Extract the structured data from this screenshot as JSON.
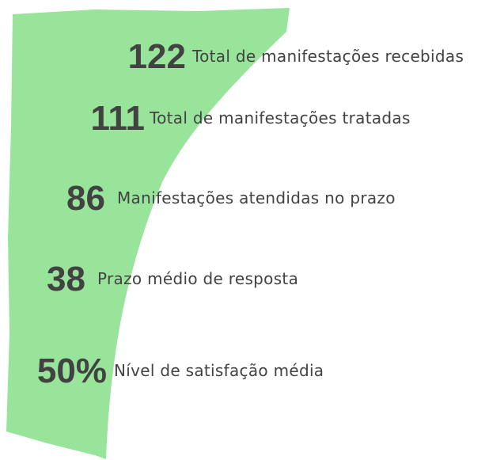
{
  "items": [
    {
      "value": "122",
      "label": "Total de manifestações recebidas"
    },
    {
      "value": "111",
      "label": "Total de manifestações tratadas"
    },
    {
      "value": "86",
      "label": "Manifestações atendidas no prazo"
    },
    {
      "value": "38",
      "label": "Prazo médio de resposta"
    },
    {
      "value": "50%",
      "label": "Nível de satisfação média"
    }
  ]
}
